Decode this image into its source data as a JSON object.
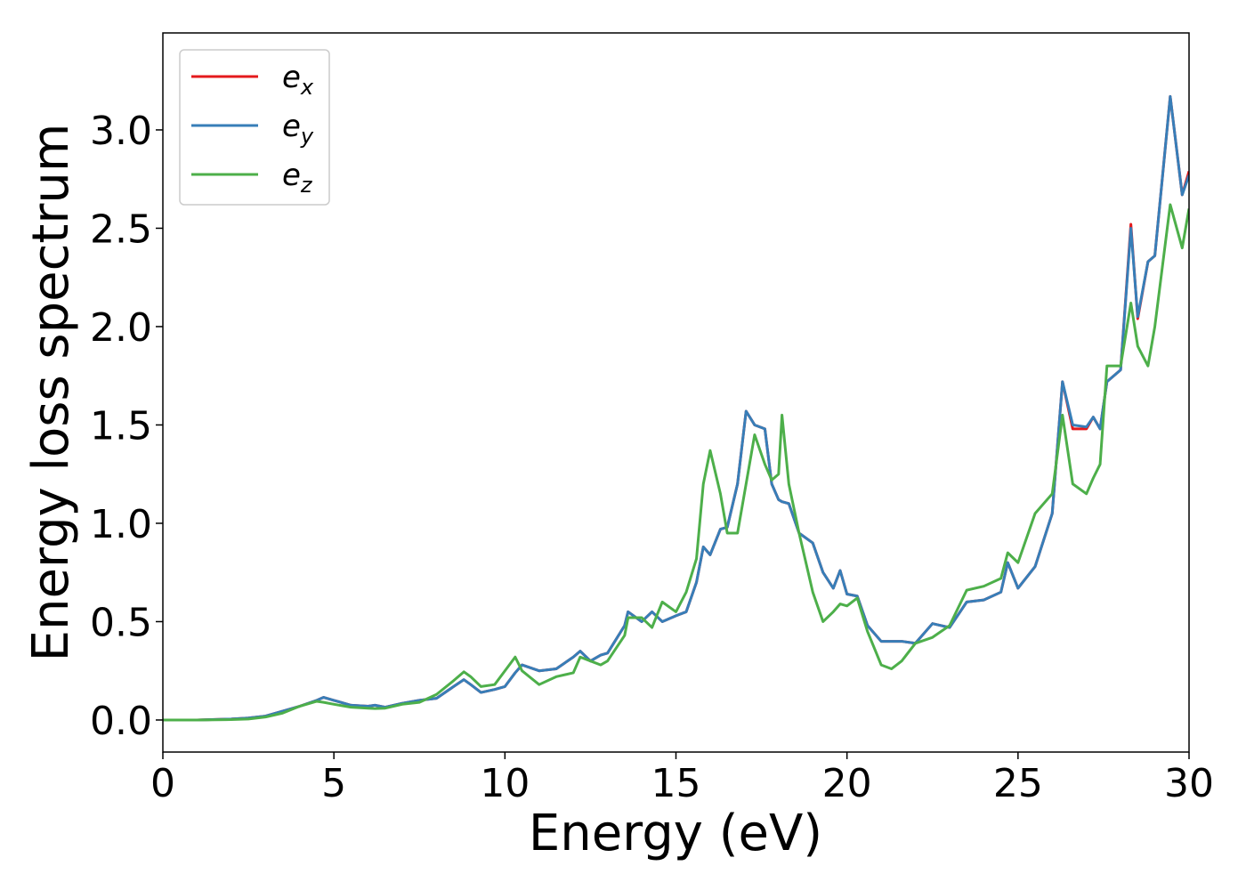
{
  "chart_data": {
    "type": "line",
    "xlabel": "Energy (eV)",
    "ylabel": "Energy loss spectrum",
    "x": [
      0,
      1,
      2,
      2.5,
      3,
      3.5,
      4,
      4.5,
      4.7,
      5,
      5.5,
      6,
      6.2,
      6.5,
      7,
      7.5,
      8,
      8.5,
      8.8,
      9,
      9.3,
      9.7,
      10,
      10.3,
      10.5,
      11,
      11.5,
      12,
      12.2,
      12.5,
      12.8,
      13,
      13.5,
      13.6,
      14,
      14.3,
      14.6,
      15,
      15.3,
      15.6,
      15.8,
      16,
      16.3,
      16.5,
      16.8,
      17.05,
      17.3,
      17.6,
      17.8,
      18,
      18.1,
      18.3,
      18.6,
      19,
      19.3,
      19.6,
      19.8,
      20,
      20.3,
      20.6,
      21,
      21.3,
      21.6,
      22,
      22.5,
      23,
      23.5,
      24,
      24.5,
      24.7,
      25,
      25.5,
      26,
      26.3,
      26.6,
      27,
      27.2,
      27.4,
      27.6,
      28,
      28.3,
      28.5,
      28.8,
      29,
      29.45,
      29.8,
      30
    ],
    "series": [
      {
        "name": "ex",
        "color": "#e41a1c",
        "values": [
          0,
          0,
          0.005,
          0.01,
          0.02,
          0.045,
          0.07,
          0.1,
          0.115,
          0.1,
          0.075,
          0.07,
          0.075,
          0.065,
          0.085,
          0.1,
          0.11,
          0.17,
          0.205,
          0.18,
          0.14,
          0.155,
          0.17,
          0.24,
          0.28,
          0.25,
          0.26,
          0.32,
          0.35,
          0.3,
          0.33,
          0.34,
          0.48,
          0.55,
          0.5,
          0.55,
          0.5,
          0.53,
          0.55,
          0.7,
          0.88,
          0.84,
          0.97,
          0.98,
          1.2,
          1.57,
          1.5,
          1.48,
          1.2,
          1.12,
          1.11,
          1.1,
          0.95,
          0.9,
          0.75,
          0.67,
          0.76,
          0.64,
          0.63,
          0.48,
          0.4,
          0.4,
          0.4,
          0.39,
          0.49,
          0.47,
          0.6,
          0.61,
          0.65,
          0.8,
          0.67,
          0.78,
          1.05,
          1.72,
          1.48,
          1.48,
          1.54,
          1.48,
          1.72,
          1.78,
          2.52,
          2.04,
          2.33,
          2.36,
          3.17,
          2.67,
          2.79
        ]
      },
      {
        "name": "ey",
        "color": "#377eb8",
        "values": [
          0,
          0,
          0.005,
          0.01,
          0.02,
          0.045,
          0.07,
          0.1,
          0.115,
          0.1,
          0.075,
          0.07,
          0.075,
          0.065,
          0.085,
          0.1,
          0.11,
          0.17,
          0.205,
          0.18,
          0.14,
          0.155,
          0.17,
          0.24,
          0.28,
          0.25,
          0.26,
          0.32,
          0.35,
          0.3,
          0.33,
          0.34,
          0.48,
          0.55,
          0.5,
          0.55,
          0.5,
          0.53,
          0.55,
          0.7,
          0.88,
          0.84,
          0.97,
          0.98,
          1.2,
          1.57,
          1.5,
          1.48,
          1.2,
          1.12,
          1.11,
          1.1,
          0.95,
          0.9,
          0.75,
          0.67,
          0.76,
          0.64,
          0.63,
          0.48,
          0.4,
          0.4,
          0.4,
          0.39,
          0.49,
          0.47,
          0.6,
          0.61,
          0.65,
          0.8,
          0.67,
          0.78,
          1.05,
          1.72,
          1.5,
          1.49,
          1.54,
          1.48,
          1.72,
          1.78,
          2.5,
          2.05,
          2.33,
          2.36,
          3.17,
          2.67,
          2.77
        ]
      },
      {
        "name": "ez",
        "color": "#4daf4a",
        "values": [
          0,
          0,
          0.002,
          0.005,
          0.015,
          0.035,
          0.07,
          0.095,
          0.09,
          0.08,
          0.065,
          0.06,
          0.058,
          0.06,
          0.08,
          0.09,
          0.13,
          0.2,
          0.245,
          0.22,
          0.17,
          0.18,
          0.25,
          0.32,
          0.25,
          0.18,
          0.22,
          0.24,
          0.32,
          0.3,
          0.28,
          0.3,
          0.43,
          0.52,
          0.52,
          0.47,
          0.6,
          0.55,
          0.65,
          0.82,
          1.2,
          1.37,
          1.15,
          0.95,
          0.95,
          1.2,
          1.45,
          1.3,
          1.22,
          1.25,
          1.55,
          1.2,
          0.95,
          0.65,
          0.5,
          0.55,
          0.59,
          0.58,
          0.62,
          0.45,
          0.28,
          0.26,
          0.3,
          0.39,
          0.42,
          0.48,
          0.66,
          0.68,
          0.72,
          0.85,
          0.8,
          1.05,
          1.15,
          1.55,
          1.2,
          1.15,
          1.23,
          1.3,
          1.8,
          1.8,
          2.12,
          1.9,
          1.8,
          2.0,
          2.62,
          2.4,
          2.6
        ]
      }
    ],
    "xlim": [
      0,
      30
    ],
    "xticks": [
      0,
      5,
      10,
      15,
      20,
      25,
      30
    ],
    "ylim": [
      -0.163,
      3.493
    ],
    "yticks": [
      {
        "value": 0,
        "label": "0.0"
      },
      0.5,
      {
        "value": 1,
        "label": "1.0"
      },
      1.5,
      {
        "value": 2,
        "label": "2.0"
      },
      2.5,
      {
        "value": 3,
        "label": "3.0"
      }
    ],
    "grid": false,
    "legend": "upper left"
  }
}
